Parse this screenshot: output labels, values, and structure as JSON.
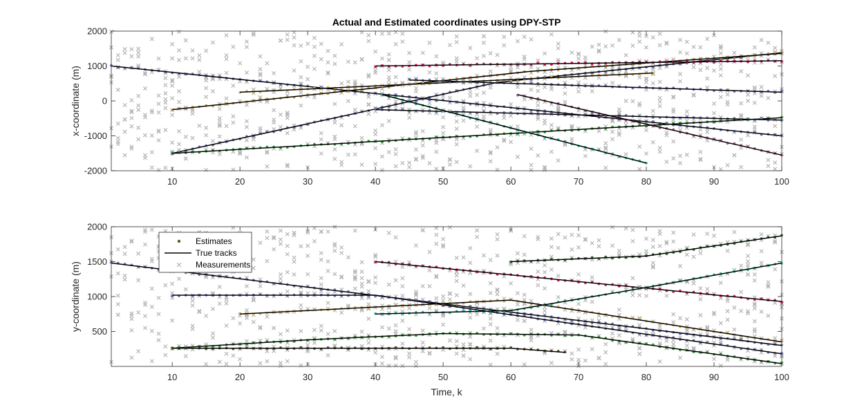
{
  "chart_data": [
    {
      "type": "line",
      "title": "Actual and Estimated coordinates using DPY-STP",
      "xlabel": "",
      "ylabel": "x-coordinate (m)",
      "xlim": [
        1,
        100
      ],
      "ylim": [
        -2000,
        2000
      ],
      "xticks": [
        10,
        20,
        30,
        40,
        50,
        60,
        70,
        80,
        90,
        100
      ],
      "yticks": [
        -2000,
        -1000,
        0,
        1000,
        2000
      ],
      "ytick_labels": [
        "-2000",
        "-1000",
        "0",
        "1000",
        "2000"
      ],
      "series": [
        {
          "name": "True tracks",
          "x": [
            1,
            100
          ],
          "y": [
            1000,
            -1000
          ],
          "estimate_color": "#6b72b8"
        },
        {
          "name": "True tracks",
          "x": [
            10,
            58,
            100
          ],
          "y": [
            -1500,
            530,
            1380
          ],
          "estimate_color": "#6b72b8"
        },
        {
          "name": "True tracks",
          "x": [
            10,
            63,
            100
          ],
          "y": [
            -250,
            850,
            1360
          ],
          "estimate_color": "#c9a24a"
        },
        {
          "name": "True tracks",
          "x": [
            10,
            100
          ],
          "y": [
            -1500,
            -480
          ],
          "estimate_color": "#2ca02c"
        },
        {
          "name": "True tracks",
          "x": [
            20,
            81
          ],
          "y": [
            250,
            800
          ],
          "estimate_color": "#d9b35a"
        },
        {
          "name": "True tracks",
          "x": [
            40,
            100
          ],
          "y": [
            1000,
            1150
          ],
          "estimate_color": "#d81b60"
        },
        {
          "name": "True tracks",
          "x": [
            40,
            100
          ],
          "y": [
            -250,
            -550
          ],
          "estimate_color": "#7a7ab8"
        },
        {
          "name": "True tracks",
          "x": [
            41,
            80
          ],
          "y": [
            180,
            -1780
          ],
          "estimate_color": "#2bbfa0"
        },
        {
          "name": "True tracks",
          "x": [
            45,
            100
          ],
          "y": [
            600,
            250
          ],
          "estimate_color": "#6b72b8"
        },
        {
          "name": "True tracks",
          "x": [
            61,
            100
          ],
          "y": [
            180,
            -1550
          ],
          "estimate_color": "#b05a8a"
        }
      ]
    },
    {
      "type": "line",
      "title": "",
      "xlabel": "Time, k",
      "ylabel": "y-coordinate (m)",
      "xlim": [
        1,
        100
      ],
      "ylim": [
        0,
        2000
      ],
      "xticks": [
        10,
        20,
        30,
        40,
        50,
        60,
        70,
        80,
        90,
        100
      ],
      "yticks": [
        500,
        1000,
        1500,
        2000
      ],
      "ytick_labels": [
        "500",
        "1000",
        "1500",
        "2000"
      ],
      "legend": {
        "position": "top-left",
        "entries": [
          "Estimates",
          "True tracks",
          "Measurements"
        ]
      },
      "series": [
        {
          "name": "True tracks",
          "x": [
            1,
            100
          ],
          "y": [
            1480,
            300
          ],
          "estimate_color": "#6b72b8"
        },
        {
          "name": "True tracks",
          "x": [
            10,
            40,
            100
          ],
          "y": [
            1020,
            1020,
            180
          ],
          "estimate_color": "#6b72b8"
        },
        {
          "name": "True tracks",
          "x": [
            10,
            30,
            50,
            70,
            100
          ],
          "y": [
            260,
            380,
            470,
            450,
            40
          ],
          "estimate_color": "#2ca02c"
        },
        {
          "name": "True tracks",
          "x": [
            10,
            60,
            68
          ],
          "y": [
            260,
            260,
            200
          ],
          "estimate_color": "#5a5a2a"
        },
        {
          "name": "True tracks",
          "x": [
            20,
            60,
            100
          ],
          "y": [
            750,
            950,
            350
          ],
          "estimate_color": "#d9b35a"
        },
        {
          "name": "True tracks",
          "x": [
            40,
            100
          ],
          "y": [
            1500,
            930
          ],
          "estimate_color": "#d81b60"
        },
        {
          "name": "True tracks",
          "x": [
            40,
            60,
            80,
            100
          ],
          "y": [
            750,
            800,
            1130,
            1480
          ],
          "estimate_color": "#2bbfa0"
        },
        {
          "name": "True tracks",
          "x": [
            60,
            80,
            100
          ],
          "y": [
            1500,
            1580,
            1870
          ],
          "estimate_color": "#2e6b2e"
        }
      ]
    }
  ]
}
